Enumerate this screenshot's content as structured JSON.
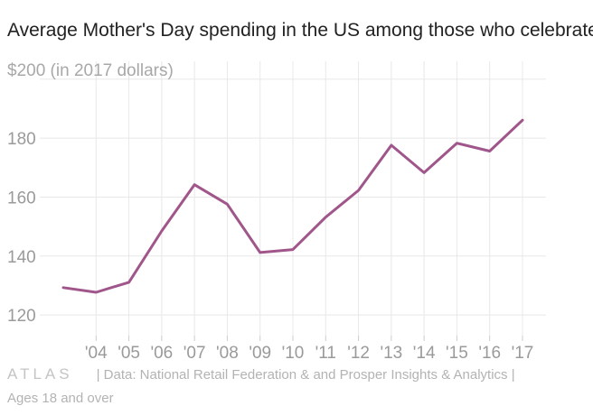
{
  "colors": {
    "line": "#a0568a",
    "grid": "#e8e8e8",
    "tick_text": "#9a9a9a",
    "title": "#222222",
    "footer": "#b3b3b3"
  },
  "chart_data": {
    "type": "line",
    "title": "Average Mother's Day spending in the US among those who celebrate",
    "ylabel_top": "$200 (in 2017 dollars)",
    "ylim": [
      113,
      203
    ],
    "y_ticks": [
      120,
      140,
      160,
      180
    ],
    "x": [
      2003,
      2004,
      2005,
      2006,
      2007,
      2008,
      2009,
      2010,
      2011,
      2012,
      2013,
      2014,
      2015,
      2016,
      2017
    ],
    "x_tick_labels": [
      "'04",
      "'05",
      "'06",
      "'07",
      "'08",
      "'09",
      "'10",
      "'11",
      "'12",
      "'13",
      "'14",
      "'15",
      "'16",
      "'17"
    ],
    "x_tick_values": [
      2004,
      2005,
      2006,
      2007,
      2008,
      2009,
      2010,
      2011,
      2012,
      2013,
      2014,
      2015,
      2016,
      2017
    ],
    "series": [
      {
        "name": "Average spending",
        "values": [
          129.3,
          127.7,
          131.1,
          148.5,
          164.2,
          157.6,
          141.2,
          142.2,
          153.2,
          162.3,
          177.6,
          168.3,
          178.3,
          175.6,
          186.1
        ]
      }
    ]
  },
  "footer": {
    "logo": "ATLAS",
    "source": "| Data: National Retail Federation & and Prosper Insights & Analytics |",
    "note": "Ages 18 and over"
  }
}
